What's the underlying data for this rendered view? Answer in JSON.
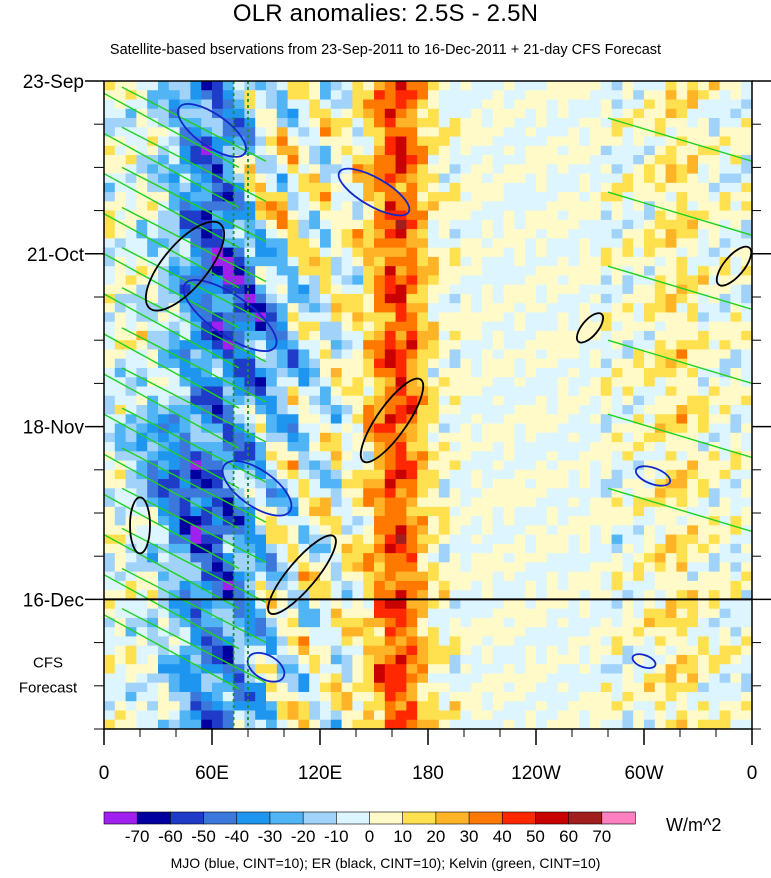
{
  "chart_data": {
    "type": "heatmap",
    "title": "OLR anomalies: 2.5S - 2.5N",
    "subtitle": "Satellite-based bservations from 23-Sep-2011 to 16-Dec-2011 + 21-day CFS Forecast",
    "x_axis": {
      "ticks": [
        {
          "lon": 0,
          "label": "0"
        },
        {
          "lon": 60,
          "label": "60E"
        },
        {
          "lon": 120,
          "label": "120E"
        },
        {
          "lon": 180,
          "label": "180"
        },
        {
          "lon": 240,
          "label": "120W"
        },
        {
          "lon": 300,
          "label": "60W"
        },
        {
          "lon": 360,
          "label": "0"
        }
      ],
      "range": [
        0,
        360
      ]
    },
    "y_axis": {
      "ticks": [
        {
          "day": 0,
          "label": "23-Sep"
        },
        {
          "day": 28,
          "label": "21-Oct"
        },
        {
          "day": 56,
          "label": "18-Nov"
        },
        {
          "day": 84,
          "label": "16-Dec"
        }
      ],
      "range_days": [
        0,
        105
      ],
      "forecast_label": [
        "CFS",
        "Forecast"
      ],
      "forecast_start_day": 84
    },
    "colorbar": {
      "unit": "W/m^2",
      "labels": [
        "-70",
        "-60",
        "-50",
        "-40",
        "-30",
        "-20",
        "-10",
        "0",
        "10",
        "20",
        "30",
        "40",
        "50",
        "60",
        "70"
      ],
      "colors": [
        "#a020f0",
        "#0000a0",
        "#1e3cc8",
        "#3c78dc",
        "#1e96f0",
        "#50b4f5",
        "#a0d2fa",
        "#dcf5ff",
        "#fffac8",
        "#ffe150",
        "#ffb428",
        "#ff7800",
        "#ff2800",
        "#c80000",
        "#a01e1e",
        "#ff80c0"
      ]
    },
    "overlays_caption": "MJO (blue, CINT=10); ER (black, CINT=10); Kelvin (green, CINT=10)",
    "overlay_colors": {
      "MJO": "#1428c8",
      "ER": "#000000",
      "Kelvin": "#1ed21e",
      "marker_lines": "#1e8c3c"
    }
  }
}
